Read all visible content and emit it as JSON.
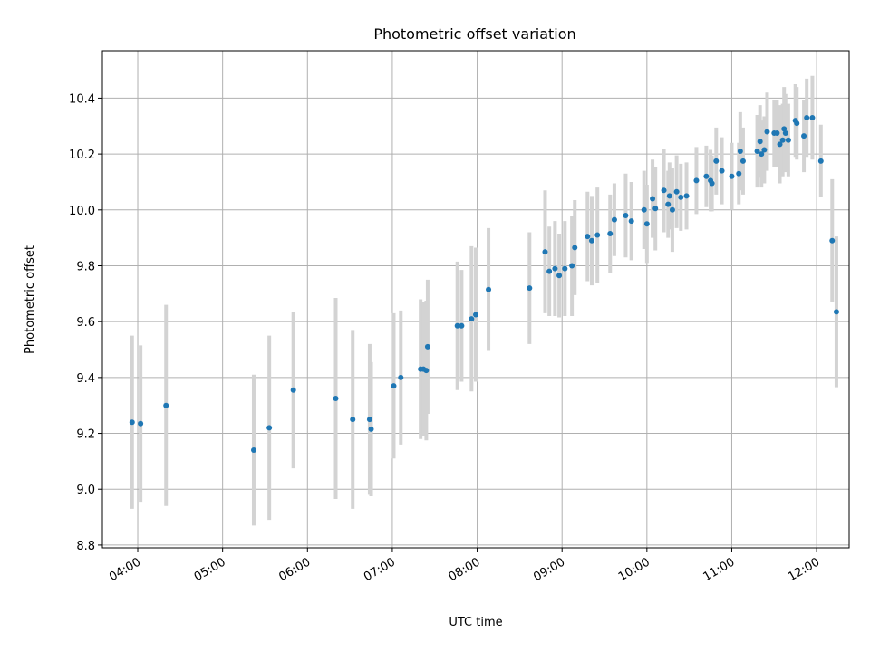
{
  "chart_data": {
    "type": "scatter",
    "title": "Photometric offset variation",
    "xlabel": "UTC time",
    "ylabel": "Photometric offset",
    "x_ticks": [
      "04:00",
      "05:00",
      "06:00",
      "07:00",
      "08:00",
      "09:00",
      "10:00",
      "11:00",
      "12:00"
    ],
    "y_ticks": [
      "8.8",
      "9.0",
      "9.2",
      "9.4",
      "9.6",
      "9.8",
      "10.0",
      "10.2",
      "10.4"
    ],
    "xlim": [
      "03:35",
      "12:23"
    ],
    "ylim": [
      8.79,
      10.57
    ],
    "grid": true,
    "colors": {
      "points": "#1f77b4",
      "errorbars": "#d3d3d3",
      "grid": "#b0b0b0"
    },
    "points": [
      {
        "t": "03:56",
        "y": 9.24,
        "err": 0.31
      },
      {
        "t": "04:02",
        "y": 9.235,
        "err": 0.28
      },
      {
        "t": "04:20",
        "y": 9.3,
        "err": 0.36
      },
      {
        "t": "05:22",
        "y": 9.14,
        "err": 0.27
      },
      {
        "t": "05:33",
        "y": 9.22,
        "err": 0.33
      },
      {
        "t": "05:50",
        "y": 9.355,
        "err": 0.28
      },
      {
        "t": "06:20",
        "y": 9.325,
        "err": 0.36
      },
      {
        "t": "06:32",
        "y": 9.25,
        "err": 0.32
      },
      {
        "t": "06:44",
        "y": 9.25,
        "err": 0.27
      },
      {
        "t": "06:45",
        "y": 9.215,
        "err": 0.24
      },
      {
        "t": "07:01",
        "y": 9.37,
        "err": 0.26
      },
      {
        "t": "07:06",
        "y": 9.4,
        "err": 0.24
      },
      {
        "t": "07:20",
        "y": 9.43,
        "err": 0.25
      },
      {
        "t": "07:22",
        "y": 9.43,
        "err": 0.24
      },
      {
        "t": "07:24",
        "y": 9.425,
        "err": 0.25
      },
      {
        "t": "07:25",
        "y": 9.51,
        "err": 0.24
      },
      {
        "t": "07:46",
        "y": 9.585,
        "err": 0.23
      },
      {
        "t": "07:49",
        "y": 9.585,
        "err": 0.2
      },
      {
        "t": "07:56",
        "y": 9.61,
        "err": 0.26
      },
      {
        "t": "07:59",
        "y": 9.625,
        "err": 0.24
      },
      {
        "t": "08:08",
        "y": 9.715,
        "err": 0.22
      },
      {
        "t": "08:37",
        "y": 9.72,
        "err": 0.2
      },
      {
        "t": "08:48",
        "y": 9.85,
        "err": 0.22
      },
      {
        "t": "08:51",
        "y": 9.78,
        "err": 0.16
      },
      {
        "t": "08:55",
        "y": 9.79,
        "err": 0.17
      },
      {
        "t": "08:58",
        "y": 9.765,
        "err": 0.15
      },
      {
        "t": "09:02",
        "y": 9.79,
        "err": 0.17
      },
      {
        "t": "09:07",
        "y": 9.8,
        "err": 0.18
      },
      {
        "t": "09:09",
        "y": 9.865,
        "err": 0.17
      },
      {
        "t": "09:18",
        "y": 9.905,
        "err": 0.16
      },
      {
        "t": "09:21",
        "y": 9.89,
        "err": 0.16
      },
      {
        "t": "09:25",
        "y": 9.91,
        "err": 0.17
      },
      {
        "t": "09:34",
        "y": 9.915,
        "err": 0.14
      },
      {
        "t": "09:37",
        "y": 9.965,
        "err": 0.13
      },
      {
        "t": "09:45",
        "y": 9.98,
        "err": 0.15
      },
      {
        "t": "09:49",
        "y": 9.96,
        "err": 0.14
      },
      {
        "t": "09:58",
        "y": 10.0,
        "err": 0.14
      },
      {
        "t": "10:00",
        "y": 9.95,
        "err": 0.14
      },
      {
        "t": "10:04",
        "y": 10.04,
        "err": 0.14
      },
      {
        "t": "10:06",
        "y": 10.005,
        "err": 0.15
      },
      {
        "t": "10:12",
        "y": 10.07,
        "err": 0.15
      },
      {
        "t": "10:15",
        "y": 10.02,
        "err": 0.12
      },
      {
        "t": "10:16",
        "y": 10.05,
        "err": 0.12
      },
      {
        "t": "10:18",
        "y": 10.0,
        "err": 0.15
      },
      {
        "t": "10:21",
        "y": 10.065,
        "err": 0.13
      },
      {
        "t": "10:24",
        "y": 10.045,
        "err": 0.12
      },
      {
        "t": "10:28",
        "y": 10.05,
        "err": 0.12
      },
      {
        "t": "10:35",
        "y": 10.105,
        "err": 0.12
      },
      {
        "t": "10:42",
        "y": 10.12,
        "err": 0.11
      },
      {
        "t": "10:45",
        "y": 10.105,
        "err": 0.11
      },
      {
        "t": "10:46",
        "y": 10.095,
        "err": 0.1
      },
      {
        "t": "10:49",
        "y": 10.175,
        "err": 0.12
      },
      {
        "t": "10:53",
        "y": 10.14,
        "err": 0.12
      },
      {
        "t": "11:00",
        "y": 10.12,
        "err": 0.12
      },
      {
        "t": "11:05",
        "y": 10.13,
        "err": 0.11
      },
      {
        "t": "11:06",
        "y": 10.21,
        "err": 0.14
      },
      {
        "t": "11:08",
        "y": 10.175,
        "err": 0.12
      },
      {
        "t": "11:18",
        "y": 10.21,
        "err": 0.13
      },
      {
        "t": "11:20",
        "y": 10.245,
        "err": 0.13
      },
      {
        "t": "11:21",
        "y": 10.2,
        "err": 0.12
      },
      {
        "t": "11:23",
        "y": 10.215,
        "err": 0.12
      },
      {
        "t": "11:25",
        "y": 10.28,
        "err": 0.14
      },
      {
        "t": "11:30",
        "y": 10.275,
        "err": 0.12
      },
      {
        "t": "11:32",
        "y": 10.275,
        "err": 0.12
      },
      {
        "t": "11:34",
        "y": 10.235,
        "err": 0.14
      },
      {
        "t": "11:36",
        "y": 10.25,
        "err": 0.13
      },
      {
        "t": "11:37",
        "y": 10.29,
        "err": 0.15
      },
      {
        "t": "11:38",
        "y": 10.275,
        "err": 0.14
      },
      {
        "t": "11:40",
        "y": 10.25,
        "err": 0.13
      },
      {
        "t": "11:45",
        "y": 10.32,
        "err": 0.13
      },
      {
        "t": "11:46",
        "y": 10.31,
        "err": 0.13
      },
      {
        "t": "11:51",
        "y": 10.265,
        "err": 0.13
      },
      {
        "t": "11:53",
        "y": 10.33,
        "err": 0.14
      },
      {
        "t": "11:57",
        "y": 10.33,
        "err": 0.15
      },
      {
        "t": "12:03",
        "y": 10.175,
        "err": 0.13
      },
      {
        "t": "12:11",
        "y": 9.89,
        "err": 0.22
      },
      {
        "t": "12:14",
        "y": 9.635,
        "err": 0.27
      }
    ]
  }
}
